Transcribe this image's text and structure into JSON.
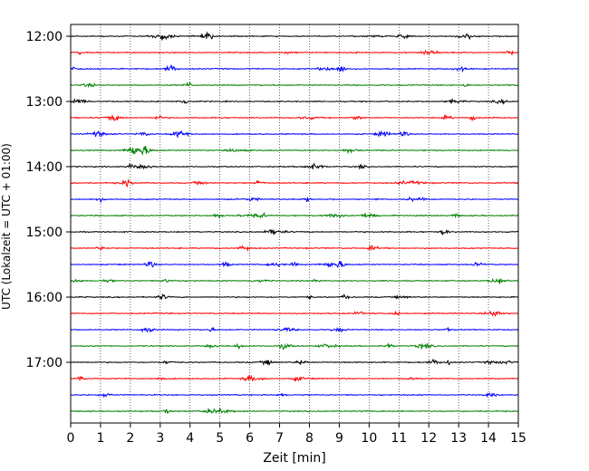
{
  "chart_data": {
    "type": "line",
    "title": "",
    "xlabel": "Zeit  [min]",
    "ylabel": "UTC (Lokalzeit = UTC + 01:00)",
    "xlim": [
      0,
      15
    ],
    "x_ticks": [
      "0",
      "1",
      "2",
      "3",
      "4",
      "5",
      "6",
      "7",
      "8",
      "9",
      "10",
      "11",
      "12",
      "13",
      "14",
      "15"
    ],
    "y_tick_labels": [
      "12:00",
      "13:00",
      "14:00",
      "15:00",
      "16:00",
      "17:00"
    ],
    "grid": "vertical dotted lines at each minute",
    "trace_interval_min": 15,
    "start_time_utc": "12:00",
    "trace_count": 24,
    "trace_colors": [
      "#000000",
      "#ff0000",
      "#0000ff",
      "#008000"
    ],
    "legend": "none"
  }
}
